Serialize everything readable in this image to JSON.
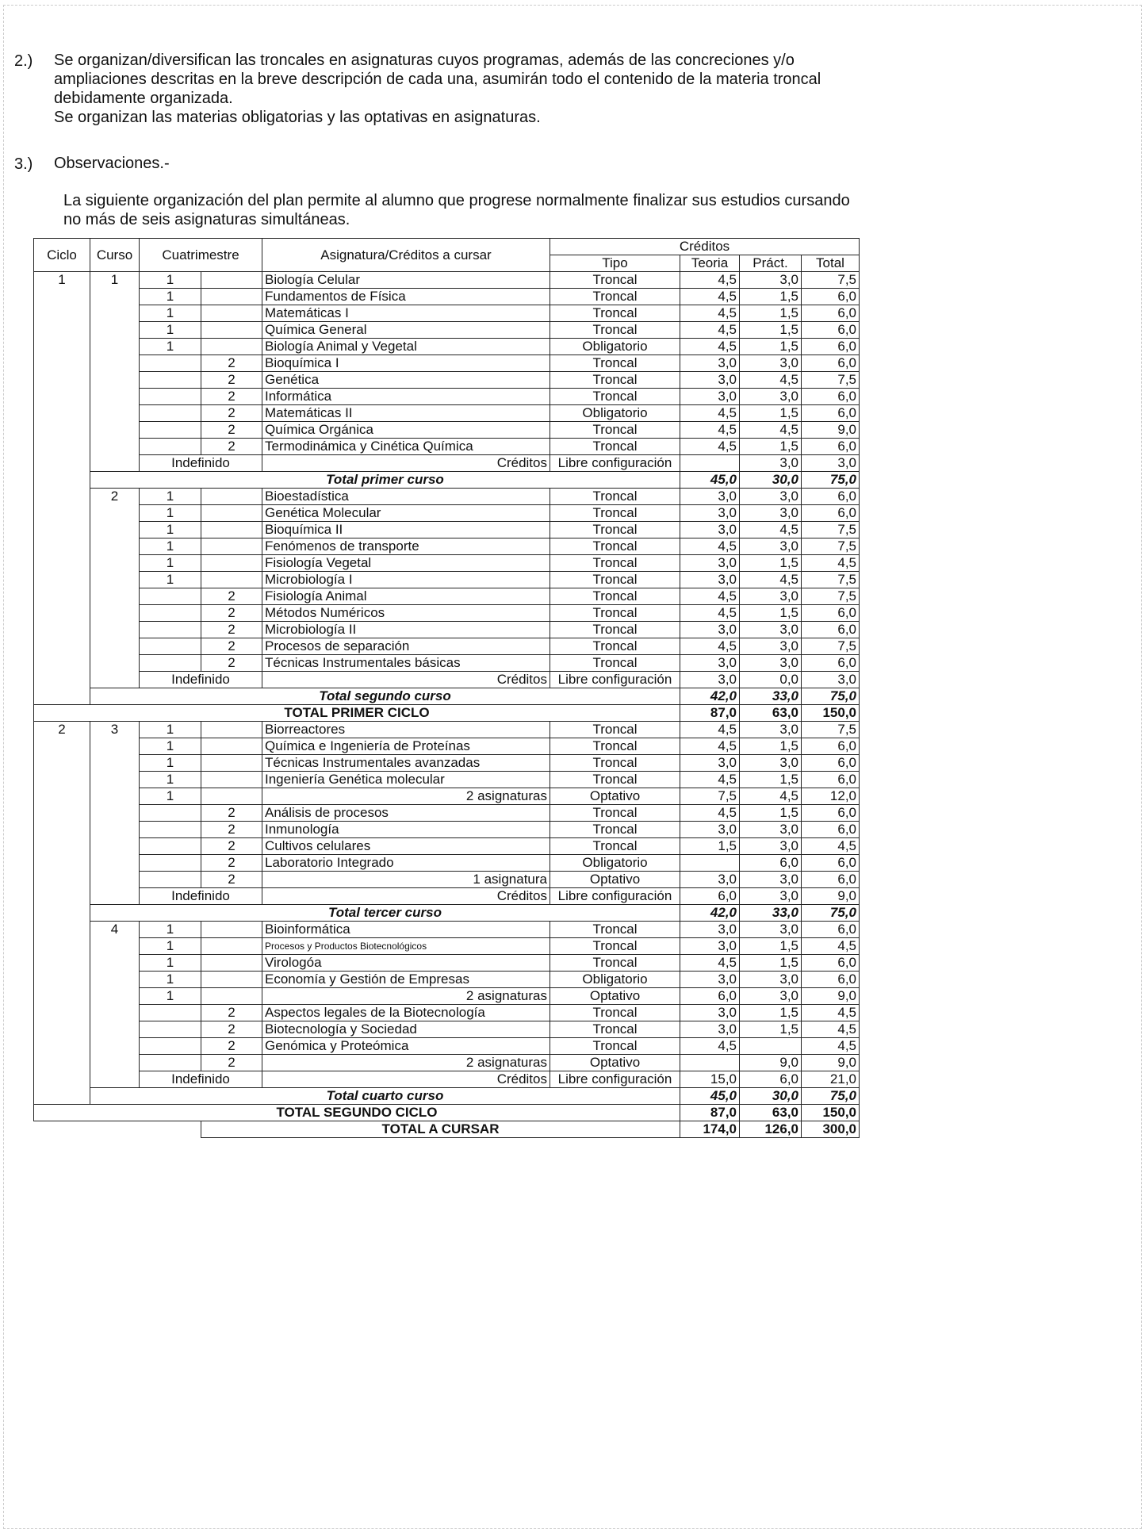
{
  "sections": [
    {
      "num": "2.)",
      "lines": [
        "Se organizan/diversifican las troncales en asignaturas cuyos programas, además de las concreciones y/o",
        "ampliaciones descritas en la breve descripción de cada una, asumirán todo el contenido de la materia troncal",
        "debidamente organizada.",
        "Se organizan las materias obligatorias y las optativas en asignaturas."
      ]
    },
    {
      "num": "3.)",
      "title": "Observaciones.-",
      "lines": [
        "La siguiente organización del plan permite al alumno que progrese normalmente finalizar sus estudios cursando",
        "no más de seis asignaturas simultáneas."
      ]
    }
  ],
  "table": {
    "headers": {
      "ciclo": "Ciclo",
      "curso": "Curso",
      "cuatrimestre": "Cuatrimestre",
      "asignatura": "Asignatura/Créditos a cursar",
      "creditos": "Créditos",
      "tipo": "Tipo",
      "teoria": "Teoria",
      "practica": "Práct.",
      "total": "Total"
    },
    "cycles": [
      {
        "ciclo": "1",
        "courses": [
          {
            "curso": "1",
            "rows": [
              [
                "1",
                "Biología Celular",
                "Troncal",
                "4,5",
                "3,0",
                "7,5"
              ],
              [
                "1",
                "Fundamentos de Física",
                "Troncal",
                "4,5",
                "1,5",
                "6,0"
              ],
              [
                "1",
                "Matemáticas I",
                "Troncal",
                "4,5",
                "1,5",
                "6,0"
              ],
              [
                "1",
                "Química General",
                "Troncal",
                "4,5",
                "1,5",
                "6,0"
              ],
              [
                "1",
                "Biología Animal y Vegetal",
                "Obligatorio",
                "4,5",
                "1,5",
                "6,0"
              ],
              [
                "2",
                "Bioquímica I",
                "Troncal",
                "3,0",
                "3,0",
                "6,0"
              ],
              [
                "2",
                "Genética",
                "Troncal",
                "3,0",
                "4,5",
                "7,5"
              ],
              [
                "2",
                "Informática",
                "Troncal",
                "3,0",
                "3,0",
                "6,0"
              ],
              [
                "2",
                "Matemáticas II",
                "Obligatorio",
                "4,5",
                "1,5",
                "6,0"
              ],
              [
                "2",
                "Química Orgánica",
                "Troncal",
                "4,5",
                "4,5",
                "9,0"
              ],
              [
                "2",
                "Termodinámica y Cinética Química",
                "Troncal",
                "4,5",
                "1,5",
                "6,0"
              ],
              [
                "Indefinido",
                "Créditos",
                "Libre configuración",
                "",
                "3,0",
                "3,0"
              ]
            ],
            "total": [
              "Total primer curso",
              "45,0",
              "30,0",
              "75,0"
            ]
          },
          {
            "curso": "2",
            "rows": [
              [
                "1",
                "Bioestadística",
                "Troncal",
                "3,0",
                "3,0",
                "6,0"
              ],
              [
                "1",
                "Genética Molecular",
                "Troncal",
                "3,0",
                "3,0",
                "6,0"
              ],
              [
                "1",
                "Bioquímica II",
                "Troncal",
                "3,0",
                "4,5",
                "7,5"
              ],
              [
                "1",
                "Fenómenos de transporte",
                "Troncal",
                "4,5",
                "3,0",
                "7,5"
              ],
              [
                "1",
                "Fisiología Vegetal",
                "Troncal",
                "3,0",
                "1,5",
                "4,5"
              ],
              [
                "1",
                "Microbiología I",
                "Troncal",
                "3,0",
                "4,5",
                "7,5"
              ],
              [
                "2",
                "Fisiología Animal",
                "Troncal",
                "4,5",
                "3,0",
                "7,5"
              ],
              [
                "2",
                "Métodos Numéricos",
                "Troncal",
                "4,5",
                "1,5",
                "6,0"
              ],
              [
                "2",
                "Microbiología II",
                "Troncal",
                "3,0",
                "3,0",
                "6,0"
              ],
              [
                "2",
                "Procesos de separación",
                "Troncal",
                "4,5",
                "3,0",
                "7,5"
              ],
              [
                "2",
                "Técnicas Instrumentales básicas",
                "Troncal",
                "3,0",
                "3,0",
                "6,0"
              ],
              [
                "Indefinido",
                "Créditos",
                "Libre configuración",
                "3,0",
                "0,0",
                "3,0"
              ]
            ],
            "total": [
              "Total segundo curso",
              "42,0",
              "33,0",
              "75,0"
            ]
          }
        ],
        "total": [
          "TOTAL PRIMER CICLO",
          "87,0",
          "63,0",
          "150,0"
        ]
      },
      {
        "ciclo": "2",
        "courses": [
          {
            "curso": "3",
            "rows": [
              [
                "1",
                "Biorreactores",
                "Troncal",
                "4,5",
                "3,0",
                "7,5"
              ],
              [
                "1",
                "Química e Ingeniería de Proteínas",
                "Troncal",
                "4,5",
                "1,5",
                "6,0"
              ],
              [
                "1",
                "Técnicas Instrumentales avanzadas",
                "Troncal",
                "3,0",
                "3,0",
                "6,0"
              ],
              [
                "1",
                "Ingeniería Genética molecular",
                "Troncal",
                "4,5",
                "1,5",
                "6,0"
              ],
              [
                "1",
                "2 asignaturas",
                "Optativo",
                "7,5",
                "4,5",
                "12,0"
              ],
              [
                "2",
                "Análisis de procesos",
                "Troncal",
                "4,5",
                "1,5",
                "6,0"
              ],
              [
                "2",
                "Inmunología",
                "Troncal",
                "3,0",
                "3,0",
                "6,0"
              ],
              [
                "2",
                "Cultivos celulares",
                "Troncal",
                "1,5",
                "3,0",
                "4,5"
              ],
              [
                "2",
                "Laboratorio  Integrado",
                "Obligatorio",
                "",
                "6,0",
                "6,0"
              ],
              [
                "2",
                "1  asignatura",
                "Optativo",
                "3,0",
                "3,0",
                "6,0"
              ],
              [
                "Indefinido",
                "Créditos",
                "Libre configuración",
                "6,0",
                "3,0",
                "9,0"
              ]
            ],
            "total": [
              "Total tercer curso",
              "42,0",
              "33,0",
              "75,0"
            ]
          },
          {
            "curso": "4",
            "rows": [
              [
                "1",
                "Bioinformática",
                "Troncal",
                "3,0",
                "3,0",
                "6,0"
              ],
              [
                "1",
                "Procesos y Productos Biotecnológicos",
                "Troncal",
                "3,0",
                "1,5",
                "4,5"
              ],
              [
                "1",
                "Virologóa",
                "Troncal",
                "4,5",
                "1,5",
                "6,0"
              ],
              [
                "1",
                "Economía y Gestión de Empresas",
                "Obligatorio",
                "3,0",
                "3,0",
                "6,0"
              ],
              [
                "1",
                "2 asignaturas",
                "Optativo",
                "6,0",
                "3,0",
                "9,0"
              ],
              [
                "2",
                "Aspectos legales de la Biotecnología",
                "Troncal",
                "3,0",
                "1,5",
                "4,5"
              ],
              [
                "2",
                "Biotecnología y Sociedad",
                "Troncal",
                "3,0",
                "1,5",
                "4,5"
              ],
              [
                "2",
                "Genómica y Proteómica",
                "Troncal",
                "4,5",
                "",
                "4,5"
              ],
              [
                "2",
                "2 asignaturas",
                "Optativo",
                "",
                "9,0",
                "9,0"
              ],
              [
                "Indefinido",
                "Créditos",
                "Libre configuración",
                "15,0",
                "6,0",
                "21,0"
              ]
            ],
            "total": [
              "Total cuarto curso",
              "45,0",
              "30,0",
              "75,0"
            ]
          }
        ],
        "total": [
          "TOTAL SEGUNDO CICLO",
          "87,0",
          "63,0",
          "150,0"
        ]
      }
    ],
    "grand_total": [
      "TOTAL A CURSAR",
      "174,0",
      "126,0",
      "300,0"
    ]
  }
}
